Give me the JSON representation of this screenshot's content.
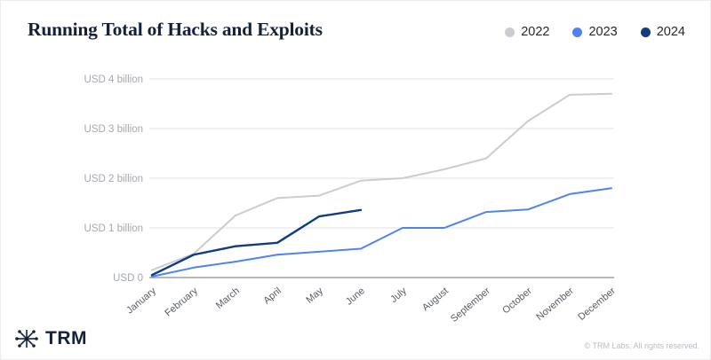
{
  "header": {
    "title": "Running Total of Hacks and Exploits"
  },
  "legend": {
    "items": [
      {
        "label": "2022",
        "color": "#c9cdd1"
      },
      {
        "label": "2023",
        "color": "#5183ee"
      },
      {
        "label": "2024",
        "color": "#113c80"
      }
    ]
  },
  "chart_data": {
    "type": "line",
    "title": "Running Total of Hacks and Exploits",
    "x_categories": [
      "January",
      "February",
      "March",
      "April",
      "May",
      "June",
      "July",
      "August",
      "September",
      "October",
      "November",
      "December"
    ],
    "y_ticks": [
      "USD 0",
      "USD 1 billion",
      "USD 2 billion",
      "USD 3 billion",
      "USD 4 billion"
    ],
    "y_unit": "USD billions",
    "ylim": [
      0,
      4
    ],
    "grid": "horizontal",
    "legend_position": "top-right",
    "series": [
      {
        "name": "2022",
        "color": "#c9cdd1",
        "values": [
          0.15,
          0.48,
          1.25,
          1.6,
          1.65,
          1.95,
          2.0,
          2.18,
          2.4,
          3.15,
          3.68,
          3.7
        ]
      },
      {
        "name": "2023",
        "color": "#5183ee",
        "values": [
          0.02,
          0.2,
          0.32,
          0.46,
          0.52,
          0.58,
          1.0,
          1.0,
          1.32,
          1.37,
          1.68,
          1.8
        ]
      },
      {
        "name": "2024",
        "color": "#113c80",
        "values": [
          0.05,
          0.46,
          0.63,
          0.7,
          1.23,
          1.36
        ]
      }
    ]
  },
  "footer": {
    "brand": "TRM",
    "brand_color": "#15213b",
    "copyright": "© TRM Labs. All rights reserved."
  }
}
